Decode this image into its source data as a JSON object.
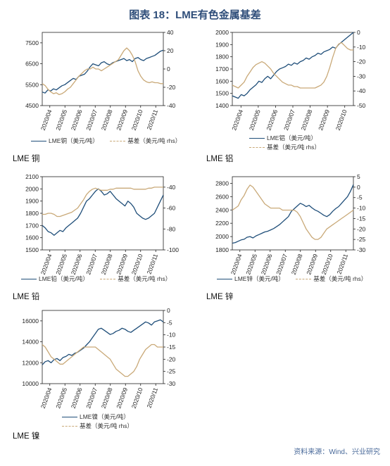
{
  "figure_title": "图表 18：LME有色金属基差",
  "source": "资料来源：Wind、兴业研究",
  "colors": {
    "price": "#1f4e79",
    "basis": "#c9a978"
  },
  "chart_data": [
    {
      "id": "copper",
      "type": "line",
      "caption": "LME 铜",
      "x_ticks": [
        "2020/04",
        "2020/05",
        "2020/06",
        "2020/07",
        "2020/08",
        "2020/09",
        "2020/10",
        "2020/11"
      ],
      "ylim_left": [
        4500,
        8000
      ],
      "yticks_left": [
        4500,
        5500,
        6500,
        7500
      ],
      "ylim_right": [
        -40,
        40
      ],
      "yticks_right": [
        -40,
        -20,
        0,
        20,
        40
      ],
      "series": [
        {
          "name": "LME铜（美元/吨）",
          "axis": "left",
          "values": [
            5150,
            5100,
            5250,
            5200,
            5300,
            5250,
            5350,
            5450,
            5500,
            5600,
            5700,
            5800,
            5750,
            5900,
            5950,
            6000,
            6150,
            6350,
            6500,
            6450,
            6400,
            6550,
            6600,
            6500,
            6450,
            6550,
            6600,
            6650,
            6700,
            6750,
            6650,
            6700,
            6600,
            6750,
            6800,
            6700,
            6650,
            6750,
            6800,
            6850,
            6900,
            7000,
            7100,
            7150
          ]
        },
        {
          "name": "基差（美元/吨 rhs）",
          "axis": "right",
          "values": [
            -16,
            -18,
            -22,
            -25,
            -27,
            -26,
            -28,
            -27,
            -25,
            -22,
            -20,
            -16,
            -12,
            -8,
            -5,
            -2,
            0,
            0,
            2,
            0,
            0,
            -2,
            0,
            2,
            4,
            6,
            8,
            10,
            15,
            20,
            23,
            20,
            15,
            8,
            -2,
            -8,
            -12,
            -14,
            -15,
            -14,
            -15,
            -15,
            -16,
            -16
          ]
        }
      ]
    },
    {
      "id": "aluminum",
      "type": "line",
      "caption": "LME 铝",
      "x_ticks": [
        "2020/04",
        "2020/05",
        "2020/06",
        "2020/07",
        "2020/08",
        "2020/09",
        "2020/10"
      ],
      "ylim_left": [
        1400,
        2000
      ],
      "yticks_left": [
        1400,
        1500,
        1600,
        1700,
        1800,
        1900,
        2000
      ],
      "ylim_right": [
        -50,
        0
      ],
      "yticks_right": [
        -50,
        -40,
        -30,
        -20,
        -10,
        0
      ],
      "series": [
        {
          "name": "LME铝（美元/吨）",
          "axis": "left",
          "values": [
            1480,
            1470,
            1460,
            1490,
            1480,
            1500,
            1530,
            1550,
            1570,
            1600,
            1590,
            1620,
            1640,
            1620,
            1650,
            1680,
            1700,
            1710,
            1720,
            1740,
            1730,
            1750,
            1740,
            1760,
            1770,
            1790,
            1780,
            1800,
            1810,
            1830,
            1820,
            1840,
            1850,
            1860,
            1880,
            1870,
            1900,
            1920,
            1940,
            1960,
            1980,
            2000
          ]
        },
        {
          "name": "基差（美元/吨 rhs）",
          "axis": "right",
          "values": [
            -36,
            -37,
            -38,
            -36,
            -34,
            -30,
            -27,
            -24,
            -22,
            -21,
            -20,
            -21,
            -23,
            -25,
            -28,
            -30,
            -32,
            -34,
            -35,
            -36,
            -36,
            -37,
            -37,
            -38,
            -38,
            -38,
            -38,
            -38,
            -38,
            -37,
            -36,
            -34,
            -30,
            -24,
            -17,
            -11,
            -8,
            -7,
            -9,
            -11,
            -12,
            -12
          ]
        }
      ]
    },
    {
      "id": "lead",
      "type": "line",
      "caption": "LME 铅",
      "x_ticks": [
        "2020/04",
        "2020/05",
        "2020/06",
        "2020/07",
        "2020/08",
        "2020/09",
        "2020/10",
        "2020/11"
      ],
      "ylim_left": [
        1500,
        2100
      ],
      "yticks_left": [
        1500,
        1600,
        1700,
        1800,
        1900,
        2000,
        2100
      ],
      "ylim_right": [
        -100,
        -30
      ],
      "yticks_right": [
        -100,
        -80,
        -60,
        -40
      ],
      "series": [
        {
          "name": "LME铅（美元/吨）",
          "axis": "left",
          "values": [
            1700,
            1680,
            1650,
            1640,
            1620,
            1640,
            1660,
            1650,
            1680,
            1700,
            1720,
            1740,
            1760,
            1800,
            1850,
            1900,
            1920,
            1950,
            1980,
            2000,
            1980,
            1950,
            1960,
            1980,
            1950,
            1920,
            1900,
            1880,
            1860,
            1900,
            1880,
            1850,
            1800,
            1780,
            1760,
            1750,
            1760,
            1780,
            1800,
            1850,
            1900,
            1950
          ]
        },
        {
          "name": "基差（美元/吨 rhs）",
          "axis": "right",
          "values": [
            -66,
            -66,
            -65,
            -65,
            -66,
            -68,
            -68,
            -67,
            -66,
            -65,
            -64,
            -62,
            -60,
            -56,
            -52,
            -47,
            -44,
            -42,
            -41,
            -42,
            -43,
            -43,
            -43,
            -42,
            -42,
            -41,
            -41,
            -41,
            -41,
            -41,
            -41,
            -42,
            -42,
            -42,
            -42,
            -42,
            -41,
            -41,
            -40,
            -40,
            -40,
            -40
          ]
        }
      ]
    },
    {
      "id": "zinc",
      "type": "line",
      "caption": "LME 锌",
      "x_ticks": [
        "2020/04",
        "2020/05",
        "2020/06",
        "2020/07",
        "2020/08",
        "2020/09",
        "2020/10",
        "2020/11"
      ],
      "ylim_left": [
        1800,
        2900
      ],
      "yticks_left": [
        1800,
        2000,
        2200,
        2400,
        2600,
        2800
      ],
      "ylim_right": [
        -30,
        5
      ],
      "yticks_right": [
        -30,
        -25,
        -20,
        -15,
        -10,
        -5,
        0,
        5
      ],
      "series": [
        {
          "name": "LME锌（美元/吨）",
          "axis": "left",
          "values": [
            1900,
            1910,
            1930,
            1950,
            1960,
            1990,
            2000,
            1980,
            2010,
            2030,
            2050,
            2070,
            2080,
            2100,
            2120,
            2150,
            2180,
            2220,
            2260,
            2300,
            2380,
            2420,
            2460,
            2500,
            2480,
            2450,
            2470,
            2430,
            2400,
            2380,
            2350,
            2320,
            2300,
            2330,
            2380,
            2420,
            2450,
            2500,
            2550,
            2600,
            2680,
            2780
          ]
        },
        {
          "name": "基差（美元/吨 rhs）",
          "axis": "right",
          "values": [
            -11,
            -10,
            -9,
            -6,
            -4,
            -1,
            1,
            0,
            -2,
            -4,
            -6,
            -8,
            -9,
            -10,
            -10,
            -10,
            -10,
            -11,
            -11,
            -11,
            -11,
            -11,
            -12,
            -14,
            -17,
            -20,
            -22,
            -24,
            -25,
            -25,
            -24,
            -22,
            -20,
            -19,
            -18,
            -17,
            -16,
            -15,
            -14,
            -13,
            -12,
            -11
          ]
        }
      ]
    },
    {
      "id": "nickel",
      "type": "line",
      "caption": "LME 镍",
      "x_ticks": [
        "2020/04",
        "2020/05",
        "2020/06",
        "2020/07",
        "2020/08",
        "2020/09",
        "2020/10",
        "2020/11"
      ],
      "ylim_left": [
        10000,
        17000
      ],
      "yticks_left": [
        10000,
        12000,
        14000,
        16000
      ],
      "ylim_right": [
        -30,
        0
      ],
      "yticks_right": [
        -30,
        -25,
        -20,
        -15,
        -10,
        -5,
        0
      ],
      "series": [
        {
          "name": "LME镍（美元/吨）",
          "axis": "left",
          "values": [
            11800,
            12100,
            12200,
            12000,
            12300,
            12400,
            12200,
            12500,
            12600,
            12800,
            12700,
            12900,
            13000,
            13200,
            13400,
            13700,
            14000,
            14400,
            14800,
            15200,
            15300,
            15100,
            14900,
            14700,
            14800,
            15000,
            15100,
            15300,
            15200,
            15000,
            14900,
            15100,
            15300,
            15500,
            15700,
            15900,
            15800,
            15600,
            15900,
            16000,
            16100,
            15900
          ]
        },
        {
          "name": "基差（美元/吨 rhs）",
          "axis": "right",
          "values": [
            -14,
            -15,
            -17,
            -19,
            -20,
            -21,
            -22,
            -22,
            -21,
            -20,
            -19,
            -18,
            -17,
            -16,
            -15,
            -15,
            -15,
            -15,
            -15,
            -16,
            -17,
            -18,
            -19,
            -20,
            -22,
            -24,
            -25,
            -26,
            -27,
            -27,
            -26,
            -25,
            -23,
            -20,
            -18,
            -16,
            -15,
            -14,
            -14,
            -15,
            -15,
            -15
          ]
        }
      ]
    }
  ]
}
